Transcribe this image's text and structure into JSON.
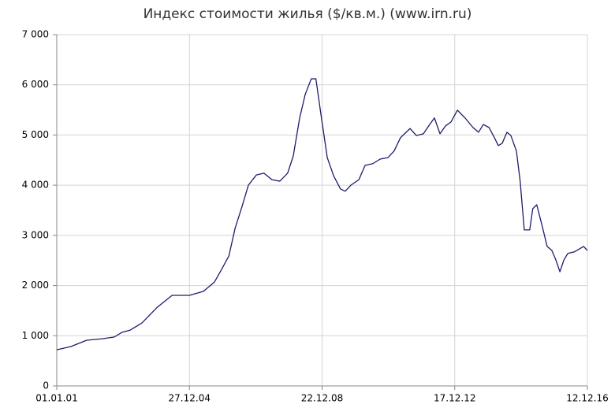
{
  "chart_data": {
    "type": "line",
    "title": "Индекс стоимости жилья ($/кв.м.) (www.irn.ru)",
    "x": [
      "2001-01-01",
      "2001-06-05",
      "2001-11-25",
      "2002-05-15",
      "2002-09-25",
      "2002-12-20",
      "2003-03-15",
      "2003-07-25",
      "2004-01-10",
      "2004-06-20",
      "2004-12-27",
      "2005-05-30",
      "2005-09-28",
      "2005-12-25",
      "2006-03-05",
      "2006-05-12",
      "2006-07-28",
      "2006-10-05",
      "2007-01-01",
      "2007-03-25",
      "2007-06-20",
      "2007-09-15",
      "2007-12-10",
      "2008-02-10",
      "2008-04-20",
      "2008-06-20",
      "2008-08-25",
      "2008-10-15",
      "2008-12-15",
      "2009-02-17",
      "2009-04-27",
      "2009-07-12",
      "2009-09-02",
      "2009-11-03",
      "2010-01-30",
      "2010-04-08",
      "2010-07-02",
      "2010-09-20",
      "2010-12-15",
      "2011-02-20",
      "2011-05-01",
      "2011-08-15",
      "2011-10-22",
      "2012-01-08",
      "2012-03-17",
      "2012-05-08",
      "2012-07-08",
      "2012-09-06",
      "2012-11-06",
      "2013-01-15",
      "2013-04-09",
      "2013-07-05",
      "2013-09-04",
      "2013-10-27",
      "2013-12-28",
      "2014-02-26",
      "2014-04-09",
      "2014-05-22",
      "2014-07-13",
      "2014-08-25",
      "2014-10-25",
      "2014-12-05",
      "2015-01-19",
      "2015-03-20",
      "2015-04-22",
      "2015-06-05",
      "2015-08-06",
      "2015-09-27",
      "2015-11-18",
      "2016-01-01",
      "2016-02-14",
      "2016-03-29",
      "2016-05-11",
      "2016-07-19",
      "2016-09-16",
      "2016-10-30",
      "2016-12-12"
    ],
    "series": [
      {
        "color": "#1c1c6b",
        "values": [
          720,
          785,
          910,
          940,
          975,
          1070,
          1110,
          1255,
          1570,
          1805,
          1805,
          1885,
          2070,
          2355,
          2590,
          3140,
          3580,
          4000,
          4205,
          4240,
          4110,
          4080,
          4240,
          4585,
          5340,
          5810,
          6120,
          6120,
          5340,
          4550,
          4190,
          3925,
          3880,
          4000,
          4110,
          4395,
          4430,
          4520,
          4550,
          4680,
          4945,
          5130,
          4990,
          5025,
          5210,
          5340,
          5025,
          5180,
          5260,
          5495,
          5340,
          5150,
          5055,
          5210,
          5150,
          4945,
          4790,
          4835,
          5055,
          4990,
          4680,
          4080,
          3110,
          3110,
          3530,
          3610,
          3170,
          2780,
          2700,
          2510,
          2275,
          2510,
          2640,
          2670,
          2730,
          2780,
          2700
        ]
      }
    ],
    "xlim": [
      "2001-01-01",
      "2016-12-12"
    ],
    "xticks": [
      {
        "value": "2001-01-01",
        "label": "01.01.01"
      },
      {
        "value": "2004-12-27",
        "label": "27.12.04"
      },
      {
        "value": "2008-12-22",
        "label": "22.12.08"
      },
      {
        "value": "2012-12-17",
        "label": "17.12.12"
      },
      {
        "value": "2016-12-12",
        "label": "12.12.16"
      }
    ],
    "ylim": [
      0,
      7000
    ],
    "yticks": [
      0,
      {
        "value": 1000,
        "label": "1 000"
      },
      {
        "value": 2000,
        "label": "2 000"
      },
      {
        "value": 3000,
        "label": "3 000"
      },
      {
        "value": 4000,
        "label": "4 000"
      },
      {
        "value": 5000,
        "label": "5 000"
      },
      {
        "value": 6000,
        "label": "6 000"
      },
      {
        "value": 7000,
        "label": "7 000"
      }
    ],
    "grid": true
  }
}
